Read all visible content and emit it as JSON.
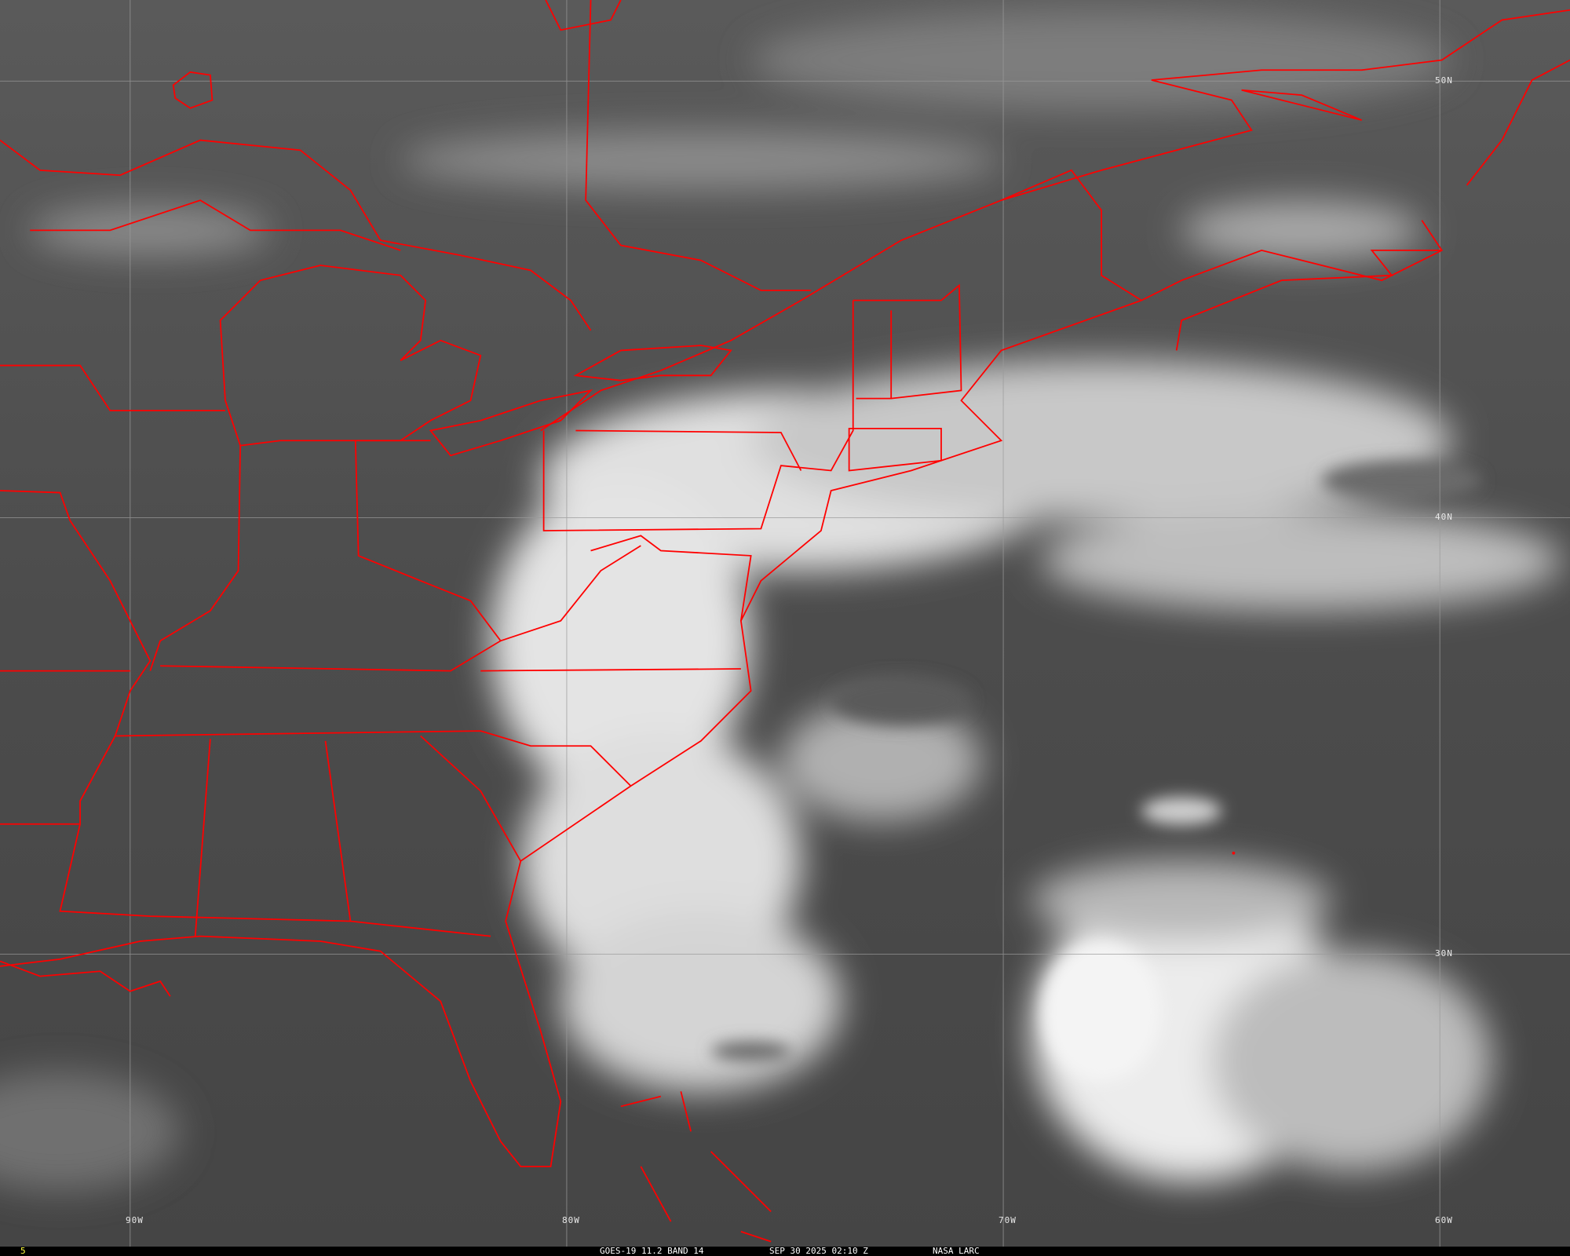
{
  "map": {
    "type": "satellite infrared image",
    "colors": {
      "borders": "#ff0000",
      "gridlines": "#9a9a9a",
      "frame_number": "#ffff40"
    },
    "longitude_labels": [
      "90W",
      "80W",
      "70W",
      "60W"
    ],
    "latitude_labels": [
      "50N",
      "40N",
      "30N"
    ]
  },
  "status_bar": {
    "frame": "5",
    "satellite": "GOES-19 11.2 BAND 14",
    "datetime": "SEP 30 2025 02:10 Z",
    "source": "NASA LARC"
  }
}
